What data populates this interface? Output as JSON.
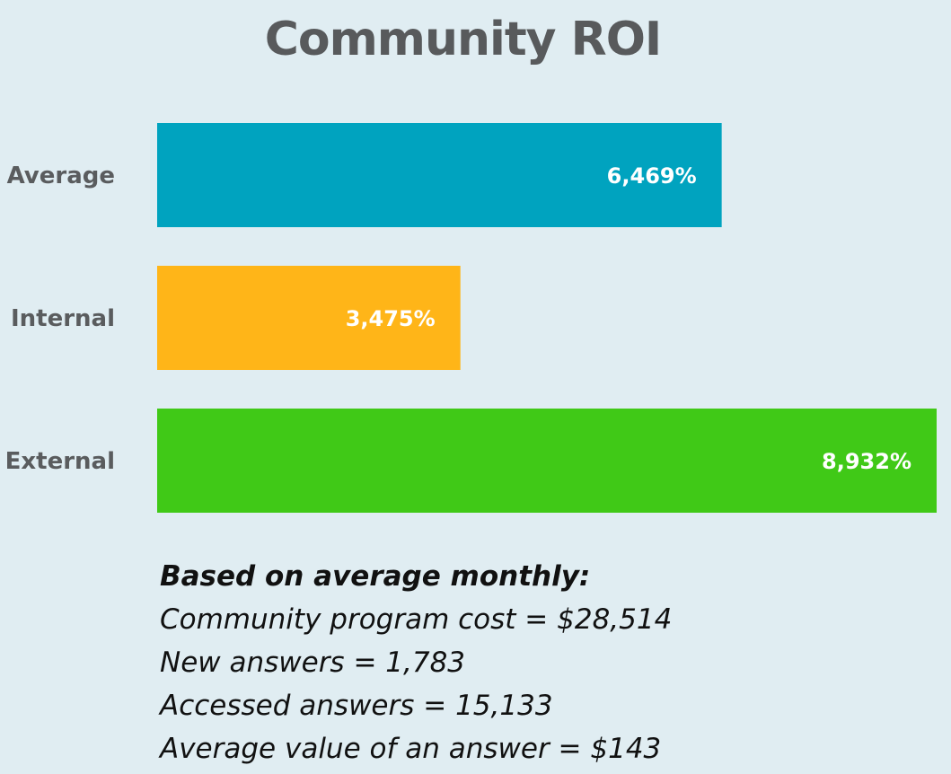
{
  "chart_data": {
    "type": "bar",
    "orientation": "horizontal",
    "title": "Community ROI",
    "categories": [
      "Average",
      "Internal",
      "External"
    ],
    "values": [
      6469,
      3475,
      8932
    ],
    "value_labels": [
      "6,469%",
      "3,475%",
      "8,932%"
    ],
    "unit": "%",
    "xlim": [
      0,
      8932
    ],
    "grid": false,
    "legend": "none",
    "colors": [
      "#00a3bf",
      "#ffb518",
      "#40c917"
    ]
  },
  "notes": {
    "heading": "Based on average monthly:",
    "lines": [
      "Community program cost = $28,514",
      "New answers = 1,783",
      "Accessed answers = 15,133",
      "Average value of an answer = $143"
    ]
  }
}
